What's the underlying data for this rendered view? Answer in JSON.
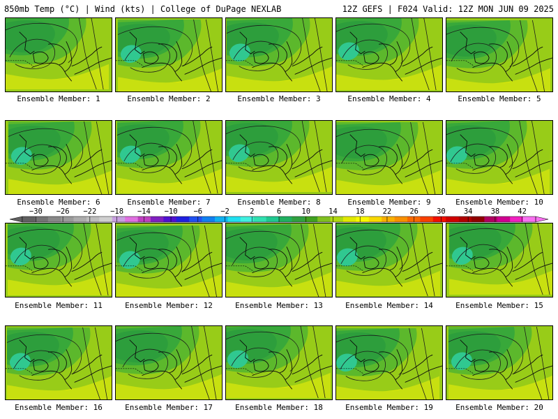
{
  "header": {
    "left": "850mb Temp (°C) | Wind (kts) | College of DuPage NEXLAB",
    "right": "12Z GEFS | F024 Valid: 12Z MON JUN 09 2025"
  },
  "label_prefix": "Ensemble Member: ",
  "members": [
    1,
    2,
    3,
    4,
    5,
    6,
    7,
    8,
    9,
    10,
    11,
    12,
    13,
    14,
    15,
    16,
    17,
    18,
    19,
    20
  ],
  "colorbar": {
    "tick_labels": [
      "-30",
      "-26",
      "-22",
      "-18",
      "-14",
      "-10",
      "-6",
      "-2",
      "2",
      "6",
      "10",
      "14",
      "18",
      "22",
      "26",
      "30",
      "34",
      "38",
      "42"
    ],
    "range": [
      -32,
      44
    ],
    "step": 2,
    "colors": [
      "#606060",
      "#747474",
      "#888888",
      "#9a9a9a",
      "#acacac",
      "#bebebe",
      "#d0d0d0",
      "#c8a0e0",
      "#e070e0",
      "#c040c0",
      "#8020c0",
      "#5010d0",
      "#2020e0",
      "#2050f0",
      "#1080f0",
      "#10b0f0",
      "#20e0f0",
      "#40f0e0",
      "#30e0b0",
      "#20c890",
      "#20b060",
      "#30a040",
      "#40a020",
      "#80c020",
      "#b0d810",
      "#e0e800",
      "#f8f800",
      "#f8d800",
      "#f8b000",
      "#f89000",
      "#f86800",
      "#f84000",
      "#f01000",
      "#d00000",
      "#b00000",
      "#900000",
      "#b00060",
      "#d00090",
      "#f020c0",
      "#f870f0"
    ]
  },
  "palette": {
    "dark_green": "#2d9e3c",
    "mid_green": "#38a83a",
    "green": "#5cb82c",
    "yellow_green": "#98cc18",
    "lime": "#c8e010",
    "yellow": "#f0f000",
    "mint": "#30c890",
    "contour": "#1a1a1a",
    "coast": "#0a0a0a"
  }
}
